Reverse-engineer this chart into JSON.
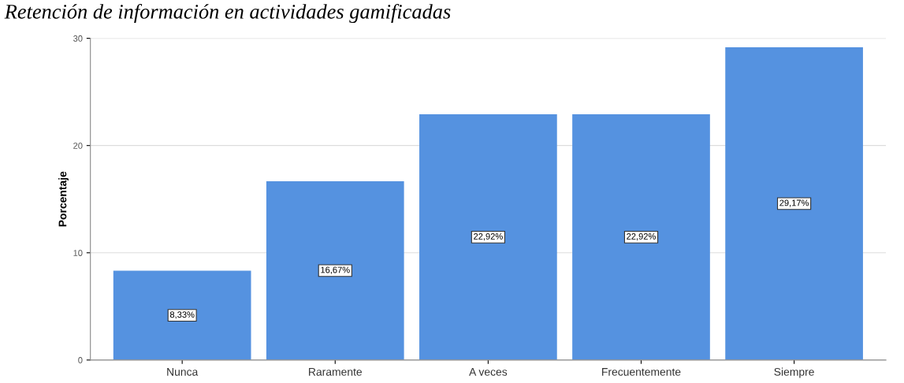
{
  "chart_data": {
    "type": "bar",
    "title": "Retención de información en actividades gamificadas",
    "ylabel": "Porcentaje",
    "categories": [
      "Nunca",
      "Raramente",
      "A veces",
      "Frecuentemente",
      "Siempre"
    ],
    "values": [
      8.33,
      16.67,
      22.92,
      22.92,
      29.17
    ],
    "value_labels": [
      "8,33%",
      "16,67%",
      "22,92%",
      "22,92%",
      "29,17%"
    ],
    "color": "#5592e0",
    "ylim": [
      0,
      30
    ],
    "yticks": [
      0,
      10,
      20,
      30
    ],
    "grid": "y",
    "legend": false
  }
}
